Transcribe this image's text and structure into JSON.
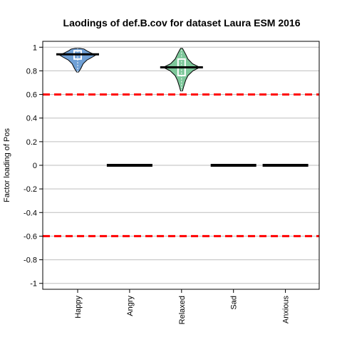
{
  "chart_data": {
    "type": "violin",
    "title": "Laodings of def.B.cov for dataset Laura ESM 2016",
    "xlabel": "",
    "ylabel": "Factor loading of Pos",
    "ylim": [
      -1.05,
      1.05
    ],
    "yticks": [
      1,
      0.8,
      0.6,
      0.4,
      0.2,
      0,
      -0.2,
      -0.4,
      -0.6,
      -0.8,
      -1
    ],
    "ytick_labels": [
      "1",
      "0.8",
      "0.6",
      "0.4",
      "0.2",
      "0",
      "-0.2",
      "-0.4",
      "-0.6",
      "-0.8",
      "-1"
    ],
    "grid": true,
    "thresholds": [
      0.6,
      -0.6
    ],
    "threshold_color": "#ff0000",
    "categories": [
      "Happy",
      "Angry",
      "Relaxed",
      "Sad",
      "Anxious"
    ],
    "series": [
      {
        "category": "Happy",
        "fill": "#6fa0d6",
        "median": 0.94,
        "q1": 0.9,
        "q3": 0.97,
        "min": 0.79,
        "max": 0.99,
        "profile": [
          [
            0.79,
            0.02
          ],
          [
            0.82,
            0.07
          ],
          [
            0.86,
            0.12
          ],
          [
            0.89,
            0.2
          ],
          [
            0.92,
            0.34
          ],
          [
            0.935,
            0.4
          ],
          [
            0.95,
            0.3
          ],
          [
            0.97,
            0.2
          ],
          [
            0.985,
            0.14
          ],
          [
            0.99,
            0.05
          ]
        ]
      },
      {
        "category": "Angry",
        "fill": "#000000",
        "median": 0,
        "flat": true
      },
      {
        "category": "Relaxed",
        "fill": "#7dc79a",
        "median": 0.83,
        "q1": 0.76,
        "q3": 0.9,
        "min": 0.63,
        "max": 0.99,
        "profile": [
          [
            0.63,
            0.02
          ],
          [
            0.67,
            0.05
          ],
          [
            0.72,
            0.09
          ],
          [
            0.76,
            0.14
          ],
          [
            0.8,
            0.25
          ],
          [
            0.83,
            0.4
          ],
          [
            0.86,
            0.24
          ],
          [
            0.9,
            0.14
          ],
          [
            0.94,
            0.09
          ],
          [
            0.97,
            0.05
          ],
          [
            0.99,
            0.02
          ]
        ]
      },
      {
        "category": "Sad",
        "fill": "#000000",
        "median": 0,
        "flat": true
      },
      {
        "category": "Anxious",
        "fill": "#000000",
        "median": 0,
        "flat": true
      }
    ]
  }
}
